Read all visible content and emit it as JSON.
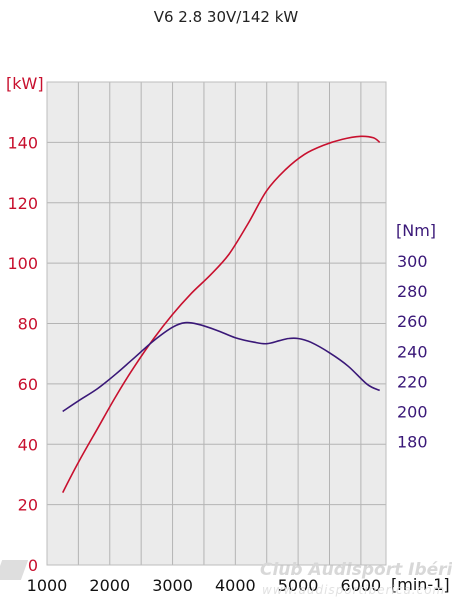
{
  "chart_data": {
    "type": "line",
    "title": "V6 2.8 30V/142 kW",
    "xlabel": "[min-1]",
    "ylabel": "[kW]",
    "y2label": "[Nm]",
    "xlim": [
      1000,
      6400
    ],
    "ylim": [
      0,
      160
    ],
    "y2lim": [
      180,
      300
    ],
    "x_ticks": [
      "1000",
      "2000",
      "3000",
      "4000",
      "5000",
      "6000"
    ],
    "y_ticks": [
      "0",
      "20",
      "40",
      "60",
      "80",
      "100",
      "120",
      "140"
    ],
    "y2_ticks": [
      "180",
      "200",
      "220",
      "240",
      "260",
      "280",
      "300"
    ],
    "grid": true,
    "series": [
      {
        "name": "",
        "axis": "left",
        "color": "#c8102e",
        "x": [
          1250,
          1500,
          1800,
          2100,
          2400,
          2700,
          3000,
          3300,
          3600,
          3900,
          4200,
          4500,
          4800,
          5100,
          5400,
          5700,
          6000,
          6200,
          6300
        ],
        "y": [
          24,
          34,
          45,
          56,
          66,
          75,
          83,
          90,
          96,
          103,
          113,
          124,
          131,
          136,
          139,
          141,
          142,
          141.5,
          140
        ]
      },
      {
        "name": "",
        "axis": "right",
        "color": "#3a1878",
        "x": [
          1250,
          1500,
          1800,
          2100,
          2400,
          2700,
          3000,
          3200,
          3400,
          3700,
          4000,
          4300,
          4500,
          4700,
          4850,
          5000,
          5200,
          5500,
          5800,
          6100,
          6300
        ],
        "y": [
          200,
          207,
          215,
          225,
          236,
          247,
          256,
          259,
          258,
          254,
          249,
          246,
          245,
          247,
          248.5,
          248.5,
          246,
          239,
          230,
          218,
          214
        ]
      }
    ]
  },
  "watermark": {
    "text": "Club Audisport Ibérica",
    "url": "www.audisportiberica.com"
  }
}
